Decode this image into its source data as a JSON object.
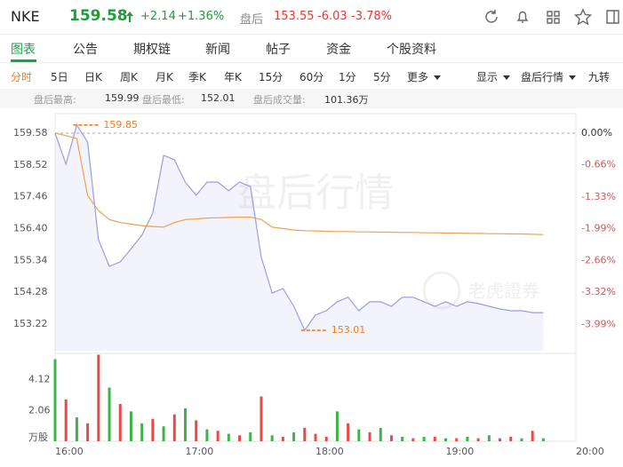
{
  "header": {
    "symbol": "NKE",
    "price": "159.58",
    "change": "+2.14",
    "change_pct": "+1.36%",
    "session": "盘后",
    "after_price": "153.55",
    "after_change": "-6.03",
    "after_change_pct": "-3.78%"
  },
  "tabs": [
    "图表",
    "公告",
    "期权链",
    "新闻",
    "帖子",
    "资金",
    "个股资料"
  ],
  "subtabs": [
    "分时",
    "5日",
    "日K",
    "周K",
    "月K",
    "季K",
    "年K",
    "15分",
    "60分",
    "1分",
    "5分",
    "更多",
    "显示",
    "盘后行情",
    "九转"
  ],
  "stats": [
    {
      "label": "盘后最高:",
      "value": "159.99"
    },
    {
      "label": "盘后最低:",
      "value": "152.01"
    },
    {
      "label": "盘后成交量:",
      "value": "101.36万"
    }
  ],
  "chart_data": {
    "type": "line",
    "watermark": "盘后行情",
    "brand": "老虎證券",
    "x": [
      "16:00",
      "16:05",
      "16:10",
      "16:15",
      "16:20",
      "16:25",
      "16:30",
      "16:35",
      "16:40",
      "16:45",
      "16:50",
      "16:55",
      "17:00",
      "17:05",
      "17:10",
      "17:15",
      "17:20",
      "17:25",
      "17:30",
      "17:35",
      "17:40",
      "17:45",
      "17:50",
      "17:55",
      "18:00",
      "18:05",
      "18:10",
      "18:15",
      "18:20",
      "18:25",
      "18:30",
      "18:35",
      "18:40",
      "18:45",
      "18:50",
      "18:55",
      "19:00",
      "19:05",
      "19:10",
      "19:15",
      "19:20",
      "19:25",
      "19:30",
      "19:35",
      "19:40",
      "19:45"
    ],
    "xticks": [
      "16:00",
      "17:00",
      "18:00",
      "19:00",
      "20:00"
    ],
    "ylim": [
      152.33,
      160.23
    ],
    "yticks": [
      159.58,
      158.52,
      157.46,
      {
        "value": 156.4,
        "label": "156.40"
      },
      155.34,
      154.28,
      153.22
    ],
    "y2lim": [
      -4.54,
      0.41
    ],
    "y2ticks": [
      {
        "value": 0,
        "label": "0.00%"
      },
      {
        "value": -0.66,
        "label": "-0.66%"
      },
      {
        "value": -1.33,
        "label": "-1.33%"
      },
      {
        "value": -1.99,
        "label": "-1.99%"
      },
      {
        "value": -2.66,
        "label": "-2.66%"
      },
      {
        "value": -3.32,
        "label": "-3.32%"
      },
      {
        "value": -3.99,
        "label": "-3.99%"
      }
    ],
    "series": [
      {
        "color": "#9a9de2",
        "values": [
          159.58,
          158.55,
          159.85,
          159.28,
          156.03,
          155.14,
          155.29,
          155.73,
          156.18,
          156.92,
          158.84,
          158.69,
          157.95,
          157.51,
          157.95,
          157.95,
          157.66,
          157.95,
          157.8,
          155.44,
          154.25,
          154.4,
          153.81,
          153.01,
          153.52,
          153.66,
          153.96,
          154.11,
          153.66,
          153.96,
          153.96,
          153.81,
          154.11,
          154.11,
          153.96,
          153.81,
          153.96,
          153.81,
          153.96,
          153.9,
          153.81,
          153.72,
          153.66,
          153.66,
          153.6,
          153.6
        ]
      },
      {
        "color": "#f0a050",
        "values": [
          159.58,
          159.5,
          159.4,
          157.5,
          157.0,
          156.7,
          156.6,
          156.55,
          156.5,
          156.47,
          156.45,
          156.6,
          156.7,
          156.72,
          156.75,
          156.76,
          156.77,
          156.78,
          156.78,
          156.7,
          156.45,
          156.4,
          156.35,
          156.33,
          156.32,
          156.31,
          156.3,
          156.3,
          156.29,
          156.29,
          156.28,
          156.28,
          156.27,
          156.27,
          156.26,
          156.26,
          156.25,
          156.25,
          156.24,
          156.24,
          156.23,
          156.23,
          156.22,
          156.22,
          156.21,
          156.2
        ]
      }
    ],
    "annotations": [
      {
        "x": "16:10",
        "value": 159.85
      },
      {
        "x": "17:55",
        "value": 153.01
      }
    ],
    "volume": {
      "unit": "万股",
      "ylim": [
        0,
        5.77
      ],
      "yticks": [
        4.12,
        2.06
      ],
      "values": [
        5.5,
        2.8,
        1.6,
        1.2,
        5.8,
        3.6,
        2.5,
        2.0,
        1.2,
        1.5,
        1.0,
        1.8,
        2.2,
        1.4,
        0.8,
        0.7,
        0.5,
        0.4,
        0.6,
        3.0,
        0.4,
        0.3,
        0.6,
        0.9,
        0.5,
        0.3,
        2.0,
        1.2,
        0.8,
        0.6,
        0.9,
        0.4,
        0.3,
        0.2,
        0.3,
        0.3,
        0.2,
        0.2,
        0.3,
        0.2,
        0.4,
        0.2,
        0.3,
        0.2,
        0.7,
        0.2
      ],
      "colors": [
        "#3bb54a",
        "#e84a4a",
        "#3bb54a",
        "#e84a4a",
        "#e84a4a",
        "#3bb54a",
        "#e84a4a",
        "#3bb54a",
        "#3bb54a",
        "#e84a4a",
        "#3bb54a",
        "#e84a4a",
        "#3bb54a",
        "#e84a4a",
        "#3bb54a",
        "#e84a4a",
        "#3bb54a",
        "#e84a4a",
        "#3bb54a",
        "#e84a4a",
        "#3bb54a",
        "#e84a4a",
        "#3bb54a",
        "#e84a4a",
        "#e84a4a",
        "#e84a4a",
        "#3bb54a",
        "#e84a4a",
        "#3bb54a",
        "#e84a4a",
        "#3bb54a",
        "#e84a4a",
        "#3bb54a",
        "#e84a4a",
        "#3bb54a",
        "#e84a4a",
        "#3bb54a",
        "#e84a4a",
        "#3bb54a",
        "#e84a4a",
        "#3bb54a",
        "#e84a4a",
        "#e84a4a",
        "#3bb54a",
        "#e84a4a",
        "#3bb54a"
      ]
    }
  }
}
